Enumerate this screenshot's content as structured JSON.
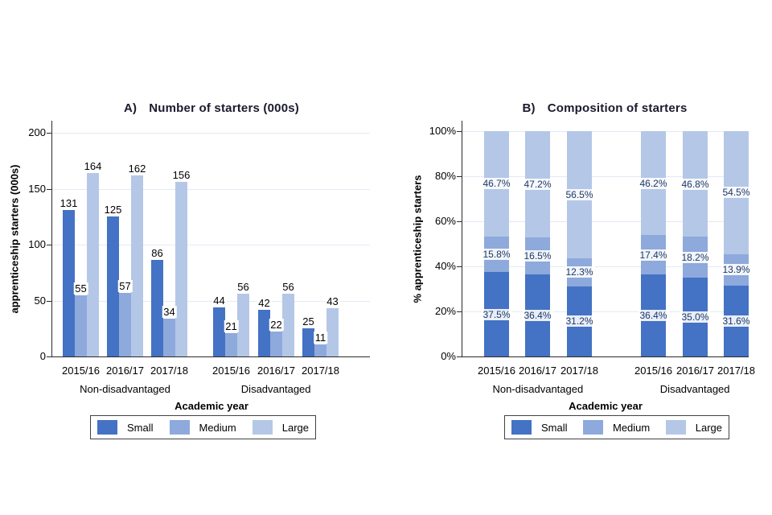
{
  "figure": {
    "background": "#ffffff"
  },
  "colors": {
    "small": "#4472c4",
    "medium": "#8ea9db",
    "large": "#b4c7e7",
    "grid": "#e3eaf4",
    "axis": "#2b2b2b",
    "title": "#1a1a2e",
    "text": "#000000",
    "pct_label_text": "#1f3864",
    "count_label_text": "#000000",
    "legend_border": "#424242"
  },
  "legend": {
    "items": [
      {
        "key": "small",
        "label": "Small"
      },
      {
        "key": "medium",
        "label": "Medium"
      },
      {
        "key": "large",
        "label": "Large"
      }
    ]
  },
  "chart_data": [
    {
      "id": "A",
      "type": "bar",
      "title_prefix": "A)",
      "title": "Number of starters (000s)",
      "ylabel": "apprenticeship starters (000s)",
      "xlabel": "Academic year",
      "ylim": [
        0,
        200
      ],
      "grid": true,
      "legend_position": "bottom",
      "yticks": [
        {
          "value": 0,
          "label": "0"
        },
        {
          "value": 50,
          "label": "50"
        },
        {
          "value": 100,
          "label": "100"
        },
        {
          "value": 150,
          "label": "150"
        },
        {
          "value": 200,
          "label": "200"
        }
      ],
      "groups": [
        "Non-disadvantaged",
        "Disadvantaged"
      ],
      "categories": [
        "2015/16",
        "2016/17",
        "2017/18",
        "2015/16",
        "2016/17",
        "2017/18"
      ],
      "series": [
        {
          "name": "Small",
          "key": "small",
          "values": [
            131,
            125,
            86,
            44,
            42,
            25
          ]
        },
        {
          "name": "Medium",
          "key": "medium",
          "values": [
            55,
            57,
            34,
            21,
            22,
            11
          ]
        },
        {
          "name": "Large",
          "key": "large",
          "values": [
            164,
            162,
            156,
            56,
            56,
            43
          ]
        }
      ]
    },
    {
      "id": "B",
      "type": "stacked-bar",
      "title_prefix": "B)",
      "title": "Composition of starters",
      "ylabel": "% apprenticeship starters",
      "xlabel": "Academic year",
      "ylim": [
        0,
        100
      ],
      "grid": true,
      "legend_position": "bottom",
      "yticks": [
        {
          "value": 0,
          "label": "0%"
        },
        {
          "value": 20,
          "label": "20%"
        },
        {
          "value": 40,
          "label": "40%"
        },
        {
          "value": 60,
          "label": "60%"
        },
        {
          "value": 80,
          "label": "80%"
        },
        {
          "value": 100,
          "label": "100%"
        }
      ],
      "groups": [
        "Non-disadvantaged",
        "Disadvantaged"
      ],
      "categories": [
        "2015/16",
        "2016/17",
        "2017/18",
        "2015/16",
        "2016/17",
        "2017/18"
      ],
      "series": [
        {
          "name": "Small",
          "key": "small",
          "values": [
            37.5,
            36.4,
            31.2,
            36.4,
            35.0,
            31.6
          ],
          "labels": [
            "37.5%",
            "36.4%",
            "31.2%",
            "36.4%",
            "35.0%",
            "31.6%"
          ]
        },
        {
          "name": "Medium",
          "key": "medium",
          "values": [
            15.8,
            16.5,
            12.3,
            17.4,
            18.2,
            13.9
          ],
          "labels": [
            "15.8%",
            "16.5%",
            "12.3%",
            "17.4%",
            "18.2%",
            "13.9%"
          ]
        },
        {
          "name": "Large",
          "key": "large",
          "values": [
            46.7,
            47.2,
            56.5,
            46.2,
            46.8,
            54.5
          ],
          "labels": [
            "46.7%",
            "47.2%",
            "56.5%",
            "46.2%",
            "46.8%",
            "54.5%"
          ]
        }
      ]
    }
  ]
}
